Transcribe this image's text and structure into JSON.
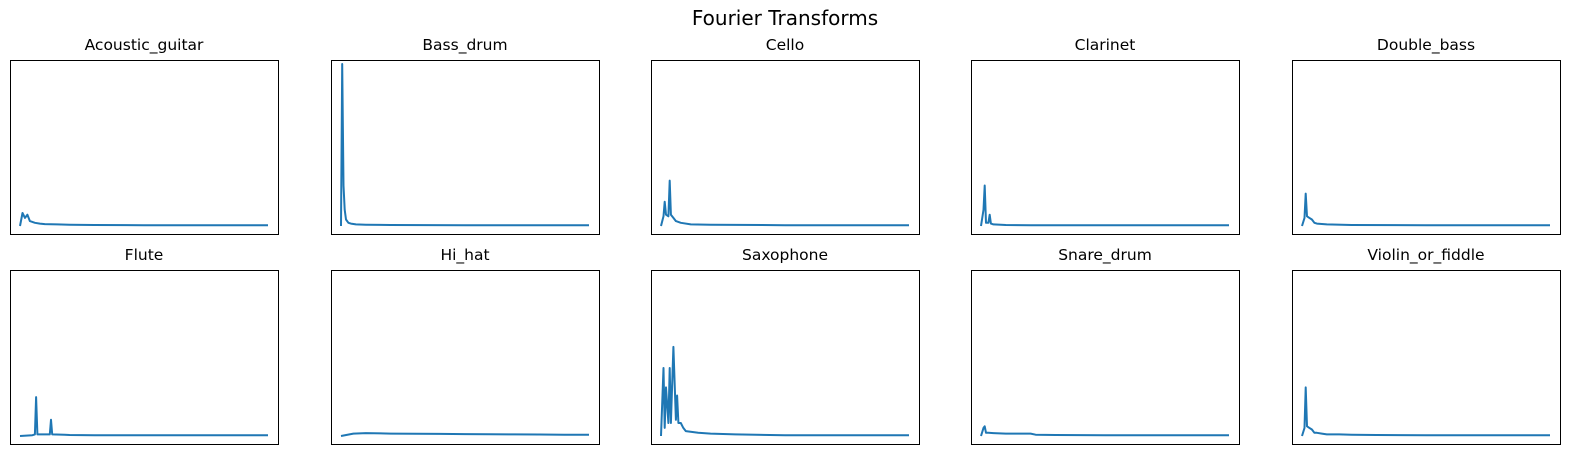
{
  "figure": {
    "title": "Fourier Transforms",
    "line_color": "#1f77b4"
  },
  "chart_data": [
    {
      "type": "line",
      "title": "Acoustic_guitar",
      "xticks": "none",
      "yticks": "none",
      "grid": false,
      "x": [
        0,
        0.01,
        0.02,
        0.03,
        0.04,
        0.06,
        0.08,
        0.1,
        0.15,
        0.2,
        0.3,
        0.5,
        1.0
      ],
      "y": [
        0,
        0.08,
        0.05,
        0.07,
        0.03,
        0.02,
        0.015,
        0.012,
        0.01,
        0.008,
        0.006,
        0.005,
        0.005
      ]
    },
    {
      "type": "line",
      "title": "Bass_drum",
      "xticks": "none",
      "yticks": "none",
      "grid": false,
      "x": [
        0,
        0.005,
        0.01,
        0.015,
        0.02,
        0.03,
        0.04,
        0.06,
        0.1,
        0.2,
        0.5,
        1.0
      ],
      "y": [
        0,
        1.0,
        0.25,
        0.1,
        0.04,
        0.02,
        0.015,
        0.01,
        0.008,
        0.006,
        0.005,
        0.005
      ]
    },
    {
      "type": "line",
      "title": "Cello",
      "xticks": "none",
      "yticks": "none",
      "grid": false,
      "x": [
        0,
        0.01,
        0.015,
        0.02,
        0.03,
        0.035,
        0.04,
        0.05,
        0.06,
        0.08,
        0.12,
        0.2,
        0.5,
        1.0
      ],
      "y": [
        0,
        0.06,
        0.15,
        0.07,
        0.06,
        0.28,
        0.07,
        0.05,
        0.03,
        0.02,
        0.01,
        0.008,
        0.005,
        0.005
      ]
    },
    {
      "type": "line",
      "title": "Clarinet",
      "xticks": "none",
      "yticks": "none",
      "grid": false,
      "x": [
        0,
        0.01,
        0.015,
        0.02,
        0.03,
        0.035,
        0.04,
        0.05,
        0.1,
        0.2,
        0.5,
        1.0
      ],
      "y": [
        0,
        0.1,
        0.25,
        0.02,
        0.02,
        0.07,
        0.015,
        0.01,
        0.006,
        0.005,
        0.005,
        0.005
      ]
    },
    {
      "type": "line",
      "title": "Double_bass",
      "xticks": "none",
      "yticks": "none",
      "grid": false,
      "x": [
        0,
        0.01,
        0.015,
        0.02,
        0.03,
        0.04,
        0.05,
        0.06,
        0.1,
        0.2,
        0.5,
        1.0
      ],
      "y": [
        0,
        0.05,
        0.2,
        0.06,
        0.05,
        0.04,
        0.02,
        0.015,
        0.01,
        0.006,
        0.005,
        0.005
      ]
    },
    {
      "type": "line",
      "title": "Flute",
      "xticks": "none",
      "yticks": "none",
      "grid": false,
      "x": [
        0,
        0.05,
        0.06,
        0.065,
        0.07,
        0.1,
        0.12,
        0.125,
        0.13,
        0.18,
        0.2,
        0.3,
        0.5,
        1.0
      ],
      "y": [
        0,
        0.005,
        0.01,
        0.24,
        0.01,
        0.01,
        0.01,
        0.1,
        0.01,
        0.008,
        0.006,
        0.005,
        0.005,
        0.005
      ]
    },
    {
      "type": "line",
      "title": "Hi_hat",
      "xticks": "none",
      "yticks": "none",
      "grid": false,
      "x": [
        0,
        0.05,
        0.1,
        0.2,
        0.3,
        0.4,
        0.5,
        0.6,
        0.7,
        0.8,
        0.9,
        1.0
      ],
      "y": [
        0,
        0.015,
        0.018,
        0.015,
        0.014,
        0.013,
        0.012,
        0.011,
        0.01,
        0.009,
        0.008,
        0.008
      ]
    },
    {
      "type": "line",
      "title": "Saxophone",
      "xticks": "none",
      "yticks": "none",
      "grid": false,
      "x": [
        0,
        0.01,
        0.015,
        0.02,
        0.03,
        0.035,
        0.04,
        0.05,
        0.06,
        0.065,
        0.07,
        0.08,
        0.09,
        0.1,
        0.15,
        0.2,
        0.3,
        0.5,
        1.0
      ],
      "y": [
        0,
        0.42,
        0.05,
        0.3,
        0.08,
        0.42,
        0.08,
        0.55,
        0.1,
        0.25,
        0.08,
        0.08,
        0.05,
        0.03,
        0.02,
        0.015,
        0.01,
        0.005,
        0.005
      ]
    },
    {
      "type": "line",
      "title": "Snare_drum",
      "xticks": "none",
      "yticks": "none",
      "grid": false,
      "x": [
        0,
        0.01,
        0.015,
        0.02,
        0.03,
        0.05,
        0.1,
        0.2,
        0.22,
        0.3,
        0.5,
        1.0
      ],
      "y": [
        0,
        0.05,
        0.06,
        0.02,
        0.02,
        0.018,
        0.015,
        0.015,
        0.008,
        0.006,
        0.005,
        0.005
      ]
    },
    {
      "type": "line",
      "title": "Violin_or_fiddle",
      "xticks": "none",
      "yticks": "none",
      "grid": false,
      "x": [
        0,
        0.01,
        0.015,
        0.02,
        0.03,
        0.04,
        0.05,
        0.06,
        0.08,
        0.1,
        0.15,
        0.2,
        0.3,
        0.5,
        1.0
      ],
      "y": [
        0,
        0.05,
        0.3,
        0.06,
        0.05,
        0.04,
        0.02,
        0.02,
        0.015,
        0.01,
        0.01,
        0.008,
        0.006,
        0.005,
        0.005
      ]
    }
  ]
}
